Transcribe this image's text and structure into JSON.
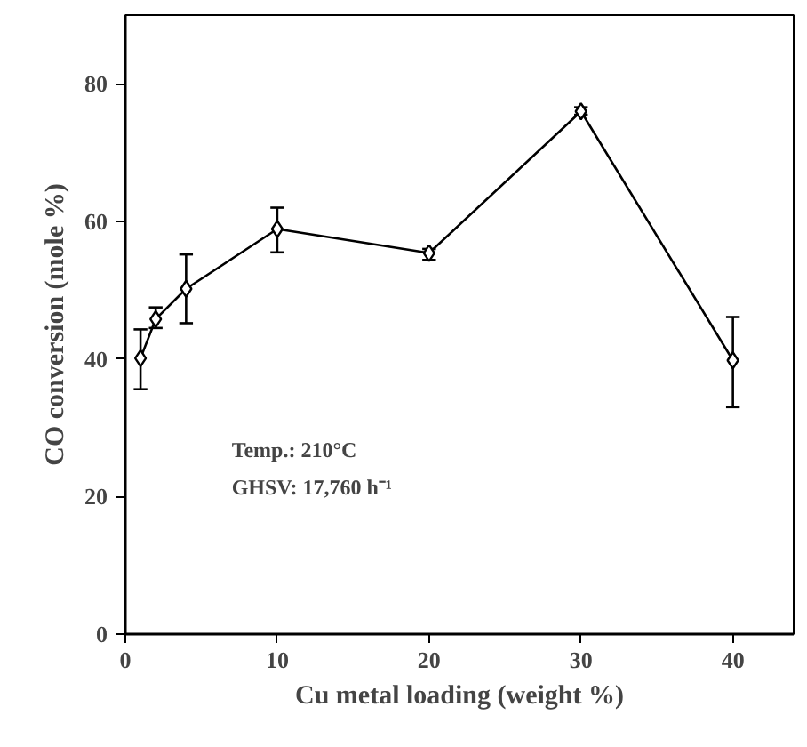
{
  "chart_data": {
    "type": "line",
    "xlabel": "Cu metal loading (weight %)",
    "ylabel": "CO conversion (mole %)",
    "x": [
      1,
      2,
      4,
      10,
      20,
      30,
      40
    ],
    "series": [
      {
        "color": "#000000",
        "values": [
          40.1,
          45.8,
          50.2,
          58.9,
          55.4,
          76.0,
          39.8
        ],
        "errors": [
          [
            35.6,
            44.3
          ],
          [
            44.5,
            47.5
          ],
          [
            45.2,
            55.2
          ],
          [
            55.5,
            62.0
          ],
          [
            54.4,
            56.0
          ],
          [
            75.5,
            76.6
          ],
          [
            33.0,
            46.1
          ]
        ]
      }
    ],
    "xlim": [
      0,
      44
    ],
    "ylim": [
      0,
      90
    ],
    "xticks": [
      0,
      10,
      20,
      30,
      40
    ],
    "yticks": [
      0,
      20,
      40,
      60,
      80
    ],
    "annotations": [
      "Temp.: 210°C",
      "GHSV: 17,760 h⁻¹"
    ],
    "marker": "diamond",
    "line_style": "solid",
    "grid": false
  }
}
